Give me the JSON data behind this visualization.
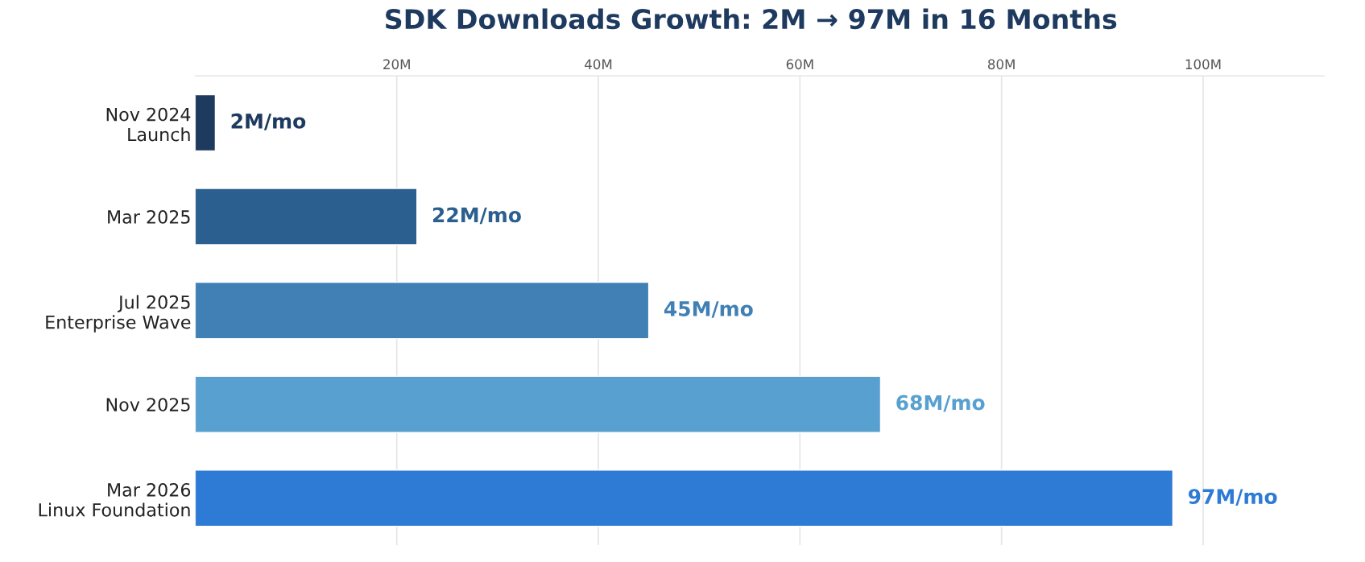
{
  "chart_data": {
    "type": "bar",
    "orientation": "horizontal",
    "title": "SDK Downloads Growth: 2M → 97M in 16 Months",
    "categories": [
      "Nov 2024\nLaunch",
      "Mar 2025",
      "Jul 2025\nEnterprise Wave",
      "Nov 2025",
      "Mar 2026\nLinux Foundation"
    ],
    "values": [
      2,
      22,
      45,
      68,
      97
    ],
    "colors": [
      "#1e3a5f",
      "#2a5f8f",
      "#4080b5",
      "#58a0d0",
      "#2e7bd6"
    ],
    "value_labels": [
      "2M/mo",
      "22M/mo",
      "45M/mo",
      "68M/mo",
      "97M/mo"
    ],
    "xlim": [
      0,
      112
    ],
    "xticks": [
      {
        "value": 20,
        "label": "20M"
      },
      {
        "value": 40,
        "label": "40M"
      },
      {
        "value": 60,
        "label": "60M"
      },
      {
        "value": 80,
        "label": "80M"
      },
      {
        "value": 100,
        "label": "100M"
      }
    ],
    "grid": "x"
  }
}
